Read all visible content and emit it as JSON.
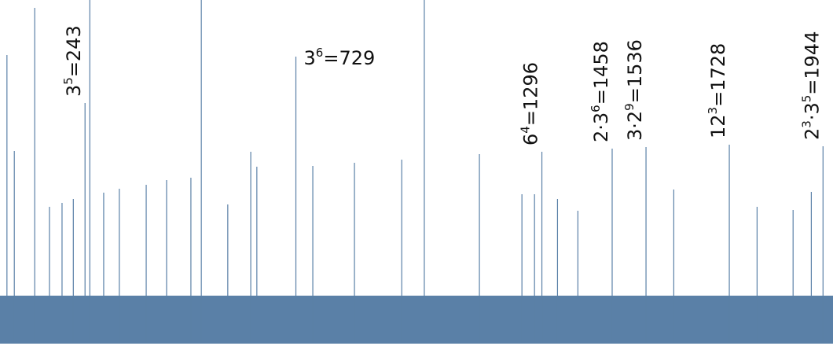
{
  "chart_data": {
    "type": "spikes",
    "color": "#5a80a7",
    "xlim": [
      47,
      1967
    ],
    "ylim": [
      0,
      437
    ],
    "floor": 61,
    "spikes": {
      "x": [
        63,
        80,
        127,
        161,
        190,
        216,
        254,
        286,
        322,
        384,
        431,
        487,
        511,
        572,
        625,
        639,
        768,
        864,
        973,
        1025,
        1152,
        1250,
        1279,
        1332,
        1379,
        1600,
        1792,
        1875,
        1917
      ],
      "values": [
        367,
        245,
        427,
        174,
        179,
        184,
        460,
        192,
        197,
        202,
        208,
        211,
        460,
        177,
        244,
        225,
        226,
        230,
        234,
        460,
        241,
        190,
        190,
        184,
        169,
        196,
        174,
        170,
        193
      ]
    },
    "labeled": {
      "x": [
        243,
        729,
        1296,
        1458,
        1536,
        1728,
        1944
      ],
      "values": [
        306,
        365,
        244,
        248,
        250,
        253,
        251
      ],
      "labels": [
        [
          "3",
          "5",
          "=243"
        ],
        [
          "3",
          "6",
          "=729"
        ],
        [
          "6",
          "4",
          "=1296"
        ],
        [
          "2·3",
          "6",
          "=1458"
        ],
        [
          "3·2",
          "9",
          "=1536"
        ],
        [
          "12",
          "3",
          "=1728"
        ],
        [
          "2",
          "3",
          "·3",
          "5",
          "=1944"
        ]
      ],
      "orientation": [
        "vertical",
        "horizontal",
        "vertical",
        "vertical",
        "vertical",
        "vertical",
        "vertical"
      ]
    }
  }
}
